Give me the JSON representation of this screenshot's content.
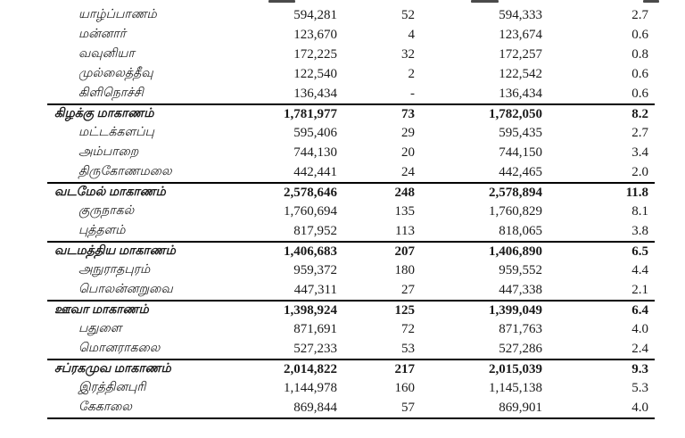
{
  "page": {
    "background_color": "#ffffff",
    "text_color": "#1a1a1a",
    "rule_color": "#000000"
  },
  "table": {
    "column_semantics": [
      "name",
      "count_primary",
      "count_secondary",
      "count_total",
      "percent"
    ],
    "groups": [
      {
        "header": null,
        "rows": [
          {
            "name": "யாழ்ப்பாணம்",
            "values": [
              "594,281",
              "52",
              "594,333",
              "2.7"
            ]
          },
          {
            "name": "மன்னார்",
            "values": [
              "123,670",
              "4",
              "123,674",
              "0.6"
            ]
          },
          {
            "name": "வவுனியா",
            "values": [
              "172,225",
              "32",
              "172,257",
              "0.8"
            ]
          },
          {
            "name": "முல்லைத்தீவு",
            "values": [
              "122,540",
              "2",
              "122,542",
              "0.6"
            ]
          },
          {
            "name": "கிளிநொச்சி",
            "values": [
              "136,434",
              "-",
              "136,434",
              "0.6"
            ]
          }
        ]
      },
      {
        "header": {
          "name": "கிழக்கு மாகாணம்",
          "values": [
            "1,781,977",
            "73",
            "1,782,050",
            "8.2"
          ]
        },
        "rows": [
          {
            "name": "மட்டக்களப்பு",
            "values": [
              "595,406",
              "29",
              "595,435",
              "2.7"
            ]
          },
          {
            "name": "அம்பாறை",
            "values": [
              "744,130",
              "20",
              "744,150",
              "3.4"
            ]
          },
          {
            "name": "திருகோணமலை",
            "values": [
              "442,441",
              "24",
              "442,465",
              "2.0"
            ]
          }
        ]
      },
      {
        "header": {
          "name": "வடமேல் மாகாணம்",
          "values": [
            "2,578,646",
            "248",
            "2,578,894",
            "11.8"
          ]
        },
        "rows": [
          {
            "name": "குருநாகல்",
            "values": [
              "1,760,694",
              "135",
              "1,760,829",
              "8.1"
            ]
          },
          {
            "name": "புத்தளம்",
            "values": [
              "817,952",
              "113",
              "818,065",
              "3.8"
            ]
          }
        ]
      },
      {
        "header": {
          "name": "வடமத்திய மாகாணம்",
          "values": [
            "1,406,683",
            "207",
            "1,406,890",
            "6.5"
          ]
        },
        "rows": [
          {
            "name": "அநுராதபுரம்",
            "values": [
              "959,372",
              "180",
              "959,552",
              "4.4"
            ]
          },
          {
            "name": "பொலன்னறுவை",
            "values": [
              "447,311",
              "27",
              "447,338",
              "2.1"
            ]
          }
        ]
      },
      {
        "header": {
          "name": "ஊவா மாகாணம்",
          "values": [
            "1,398,924",
            "125",
            "1,399,049",
            "6.4"
          ]
        },
        "rows": [
          {
            "name": "பதுளை",
            "values": [
              "871,691",
              "72",
              "871,763",
              "4.0"
            ]
          },
          {
            "name": "மொனராகலை",
            "values": [
              "527,233",
              "53",
              "527,286",
              "2.4"
            ]
          }
        ]
      },
      {
        "header": {
          "name": "சப்ரகமுவ மாகாணம்",
          "values": [
            "2,014,822",
            "217",
            "2,015,039",
            "9.3"
          ]
        },
        "rows": [
          {
            "name": "இரத்தினபுரி",
            "values": [
              "1,144,978",
              "160",
              "1,145,138",
              "5.3"
            ]
          },
          {
            "name": "கேகாலை",
            "values": [
              "869,844",
              "57",
              "869,901",
              "4.0"
            ]
          }
        ]
      }
    ]
  }
}
